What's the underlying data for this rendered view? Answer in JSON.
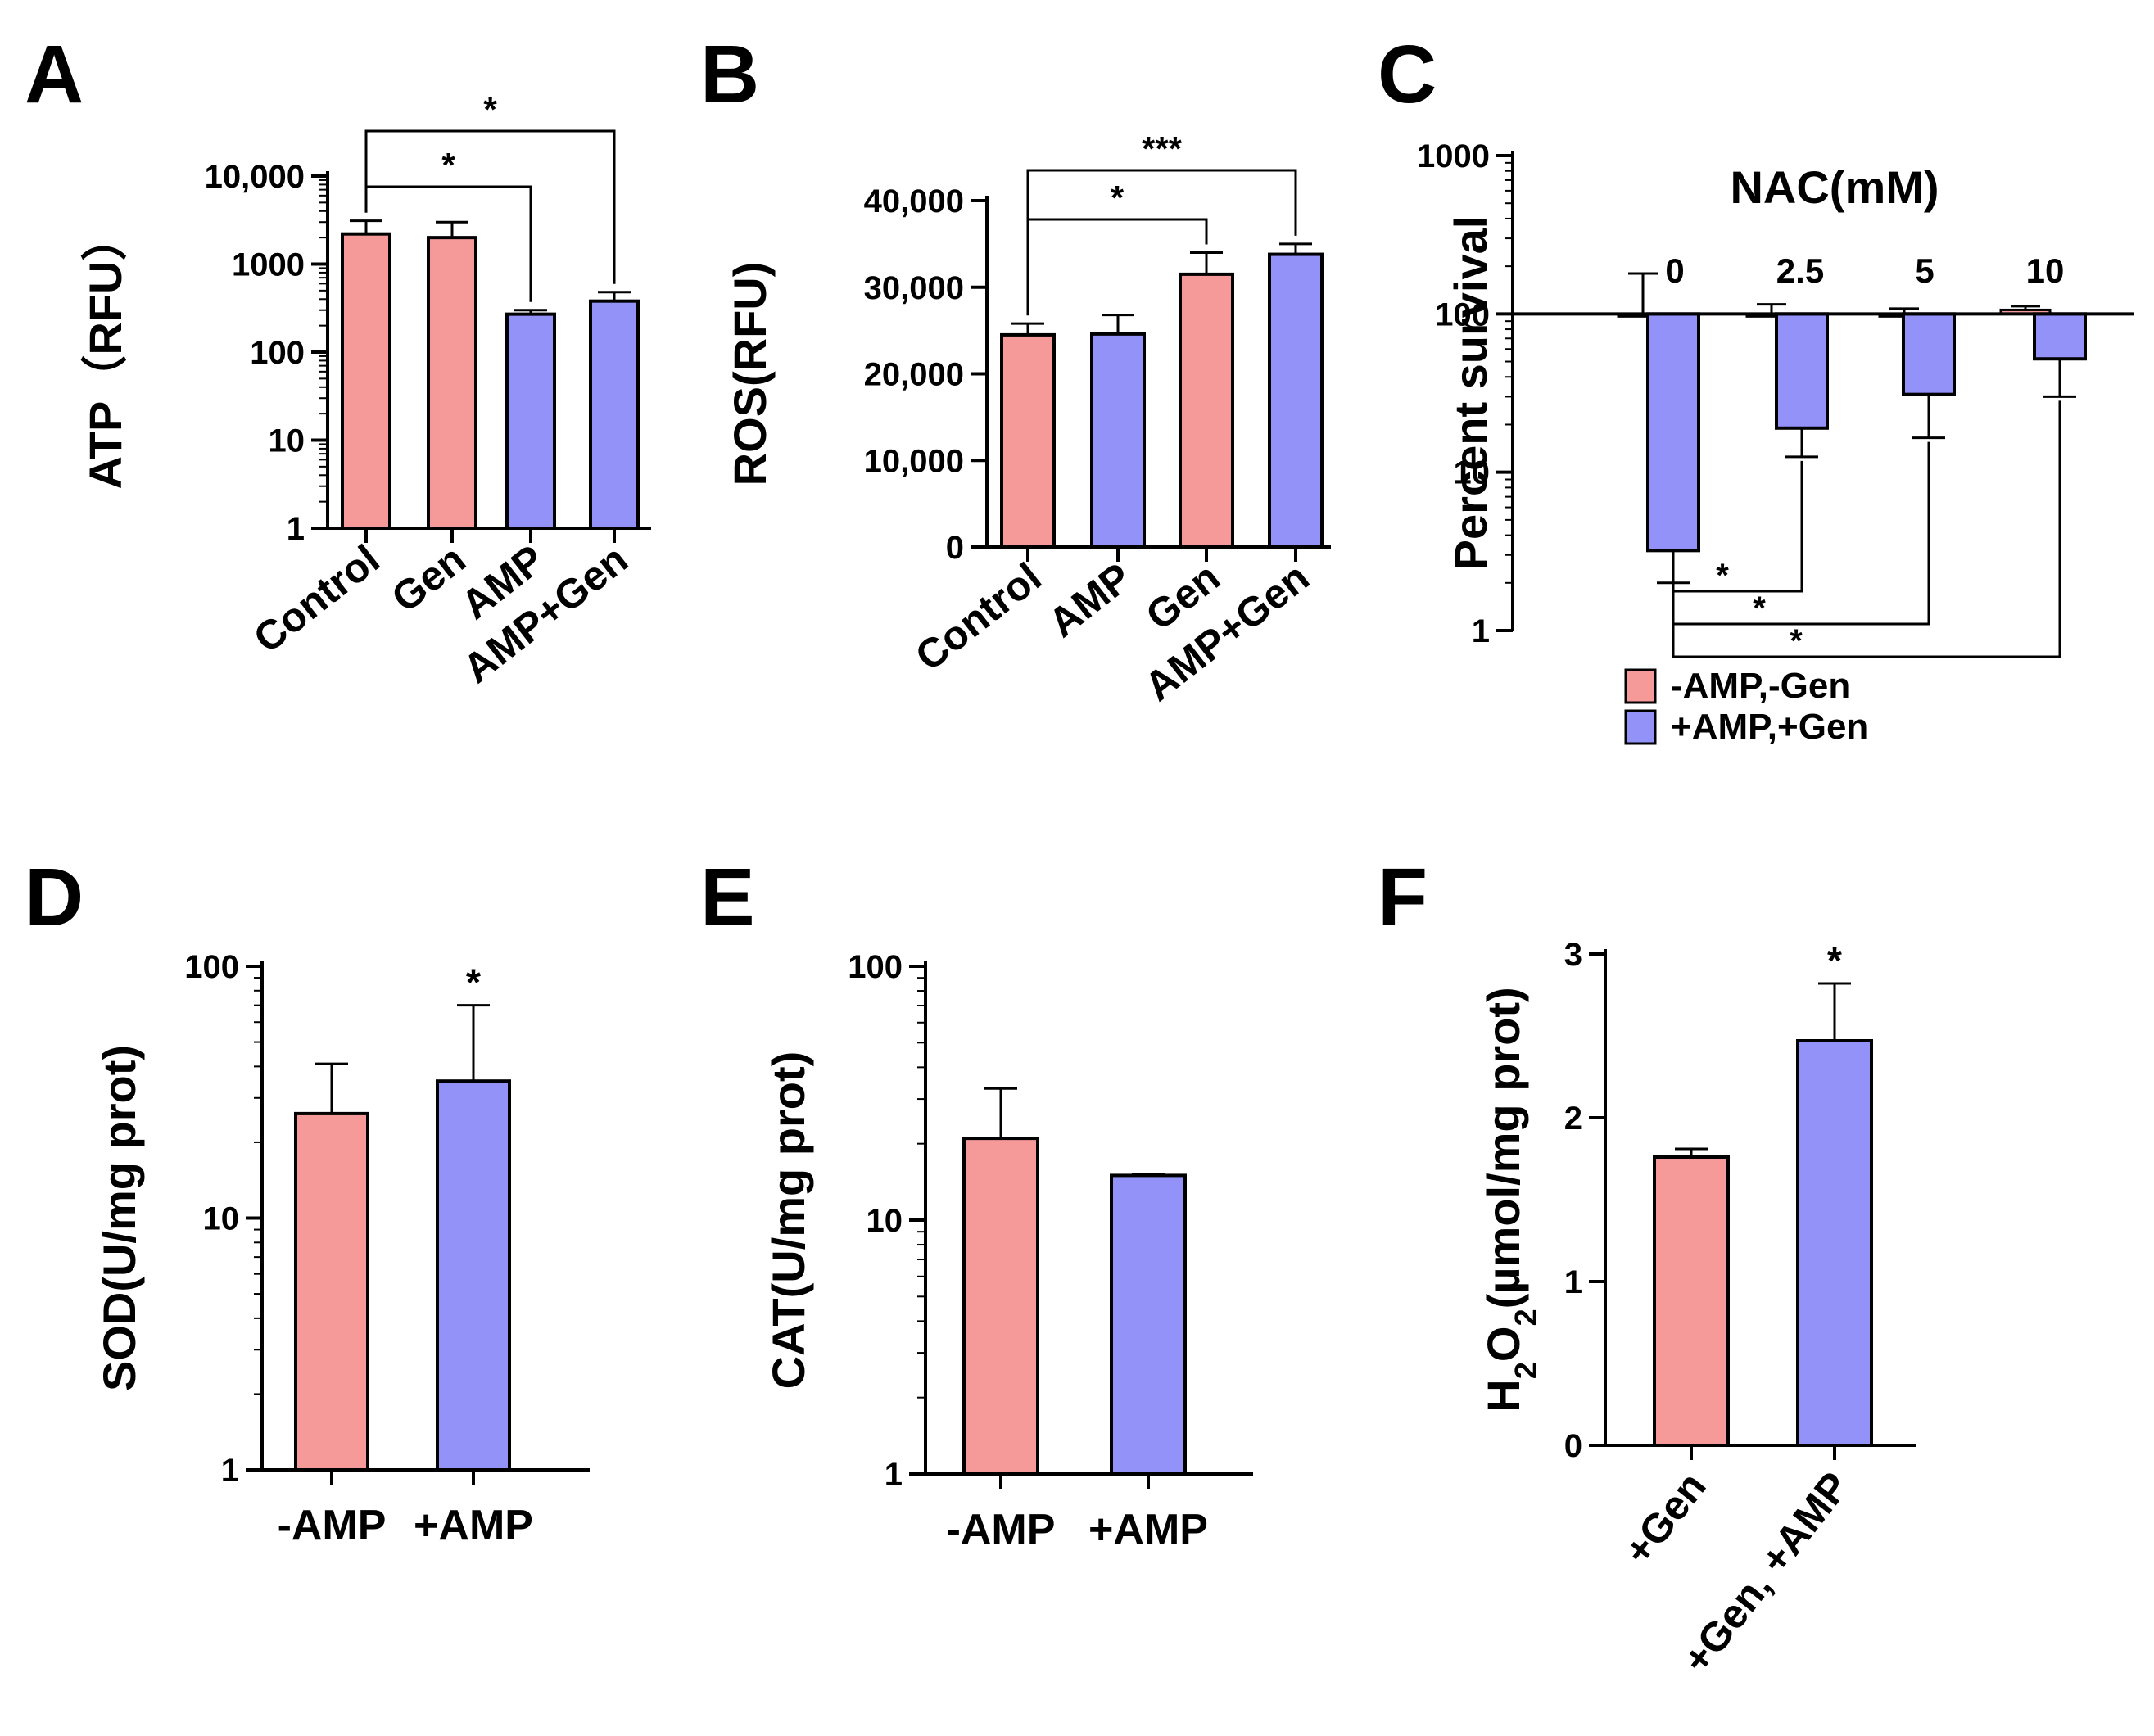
{
  "colors": {
    "pink": "#F59A99",
    "blue": "#9392F9",
    "axis": "#000000"
  },
  "chart_data": [
    {
      "panel": "A",
      "type": "bar",
      "scale": "log",
      "ylabel": "ATP（RFU）",
      "categories": [
        "Control",
        "Gen",
        "AMP",
        "AMP+Gen"
      ],
      "values": [
        2200,
        2000,
        270,
        380
      ],
      "errors_upper": [
        3100,
        3000,
        300,
        480
      ],
      "colors": [
        "pink",
        "pink",
        "blue",
        "blue"
      ],
      "ylim": [
        1,
        10000
      ],
      "yticks": [
        1,
        10,
        100,
        1000,
        10000
      ],
      "yticklabels": [
        "1",
        "10",
        "100",
        "1000",
        "10,000"
      ],
      "significance": [
        {
          "from": 0,
          "to": 2,
          "label": "*"
        },
        {
          "from": 0,
          "to": 3,
          "label": "*"
        }
      ]
    },
    {
      "panel": "B",
      "type": "bar",
      "scale": "linear",
      "ylabel": "ROS(RFU)",
      "categories": [
        "Control",
        "AMP",
        "Gen",
        "AMP+Gen"
      ],
      "values": [
        24500,
        24600,
        31500,
        33800
      ],
      "errors_upper": [
        25800,
        26800,
        34000,
        35000
      ],
      "colors": [
        "pink",
        "blue",
        "pink",
        "blue"
      ],
      "ylim": [
        0,
        40000
      ],
      "yticks": [
        0,
        10000,
        20000,
        30000,
        40000
      ],
      "yticklabels": [
        "0",
        "10,000",
        "20,000",
        "30,000",
        "40,000"
      ],
      "significance": [
        {
          "from": 0,
          "to": 2,
          "label": "*"
        },
        {
          "from": 0,
          "to": 3,
          "label": "***"
        }
      ]
    },
    {
      "panel": "C",
      "type": "bar",
      "scale": "log",
      "ylabel": "Percent survival",
      "title": "NAC(mM)",
      "categories": [
        "0",
        "2.5",
        "5",
        "10"
      ],
      "baseline": 100,
      "series": [
        {
          "name": "-AMP,-Gen",
          "color": "pink",
          "values": [
            100,
            100,
            100,
            106
          ],
          "errors": [
            180,
            115,
            108,
            112
          ]
        },
        {
          "name": "+AMP,+Gen",
          "color": "blue",
          "values": [
            3.2,
            19,
            31,
            52
          ],
          "errors": [
            2.0,
            12.5,
            16.5,
            30
          ]
        }
      ],
      "ylim": [
        1,
        1000
      ],
      "yticks": [
        1,
        10,
        100,
        1000
      ],
      "yticklabels": [
        "1",
        "10",
        "100",
        "1000"
      ],
      "significance": [
        {
          "from": 0,
          "to": 1,
          "label": "*"
        },
        {
          "from": 0,
          "to": 2,
          "label": "*"
        },
        {
          "from": 0,
          "to": 3,
          "label": "*"
        }
      ],
      "legend": {
        "position": "bottom-left",
        "entries": [
          "-AMP,-Gen",
          "+AMP,+Gen"
        ]
      }
    },
    {
      "panel": "D",
      "type": "bar",
      "scale": "log",
      "ylabel": "SOD(U/mg prot)",
      "categories": [
        "-AMP",
        "+AMP"
      ],
      "values": [
        26,
        35
      ],
      "errors_upper": [
        41,
        70
      ],
      "colors": [
        "pink",
        "blue"
      ],
      "ylim": [
        1,
        100
      ],
      "yticks": [
        1,
        10,
        100
      ],
      "yticklabels": [
        "1",
        "10",
        "100"
      ],
      "stars": [
        {
          "index": 1,
          "label": "*"
        }
      ]
    },
    {
      "panel": "E",
      "type": "bar",
      "scale": "log",
      "ylabel": "CAT(U/mg prot)",
      "categories": [
        "-AMP",
        "+AMP"
      ],
      "values": [
        21,
        15
      ],
      "errors_upper": [
        33,
        15.2
      ],
      "colors": [
        "pink",
        "blue"
      ],
      "ylim": [
        1,
        100
      ],
      "yticks": [
        1,
        10,
        100
      ],
      "yticklabels": [
        "1",
        "10",
        "100"
      ]
    },
    {
      "panel": "F",
      "type": "bar",
      "scale": "linear",
      "ylabel_parts": [
        "H",
        "2",
        "O",
        "2",
        "(µmol/mg prot)"
      ],
      "categories": [
        "+Gen",
        "+Gen, +AMP"
      ],
      "values": [
        1.76,
        2.47
      ],
      "errors_upper": [
        1.81,
        2.82
      ],
      "colors": [
        "pink",
        "blue"
      ],
      "ylim": [
        0,
        3
      ],
      "yticks": [
        0,
        1,
        2,
        3
      ],
      "yticklabels": [
        "0",
        "1",
        "2",
        "3"
      ],
      "stars": [
        {
          "index": 1,
          "label": "*"
        }
      ]
    }
  ]
}
